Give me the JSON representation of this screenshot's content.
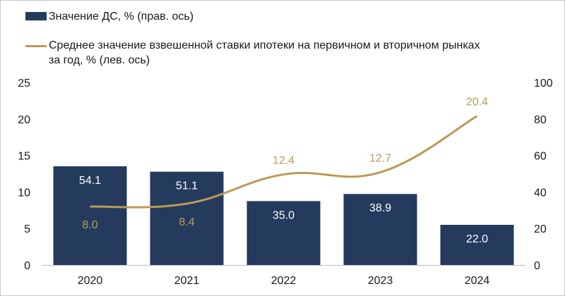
{
  "legend": {
    "bar_label": "Значение ДС, % (прав. ось)",
    "line_label_1": "Среднее значение взвешенной ставки ипотеки на первичном и вторичном рынках",
    "line_label_2": "за год, % (лев. ось)"
  },
  "colors": {
    "bar": "#243b5e",
    "line": "#bc9a55",
    "text": "#1a1a1a",
    "bar_label": "#ffffff",
    "line_label": "#bc9a55"
  },
  "chart_data": {
    "type": "bar",
    "categories": [
      "2020",
      "2021",
      "2022",
      "2023",
      "2024"
    ],
    "series": [
      {
        "name": "Значение ДС, % (прав. ось)",
        "type": "bar",
        "axis": "right",
        "values": [
          54.1,
          51.1,
          35.0,
          38.9,
          22.0
        ],
        "labels": [
          "54.1",
          "51.1",
          "35.0",
          "38.9",
          "22.0"
        ]
      },
      {
        "name": "Среднее значение взвешенной ставки ипотеки на первичном и вторичном рынках за год, % (лев. ось)",
        "type": "line",
        "axis": "left",
        "values": [
          8.0,
          8.4,
          12.4,
          12.7,
          20.4
        ],
        "labels": [
          "8.0",
          "8.4",
          "12.4",
          "12.7",
          "20.4"
        ]
      }
    ],
    "y_left": {
      "min": 0,
      "max": 25,
      "ticks": [
        "0",
        "5",
        "10",
        "15",
        "20",
        "25"
      ]
    },
    "y_right": {
      "min": 0,
      "max": 100,
      "ticks": [
        "0",
        "20",
        "40",
        "60",
        "80",
        "100"
      ]
    },
    "grid": false,
    "legend_position": "top-left"
  }
}
